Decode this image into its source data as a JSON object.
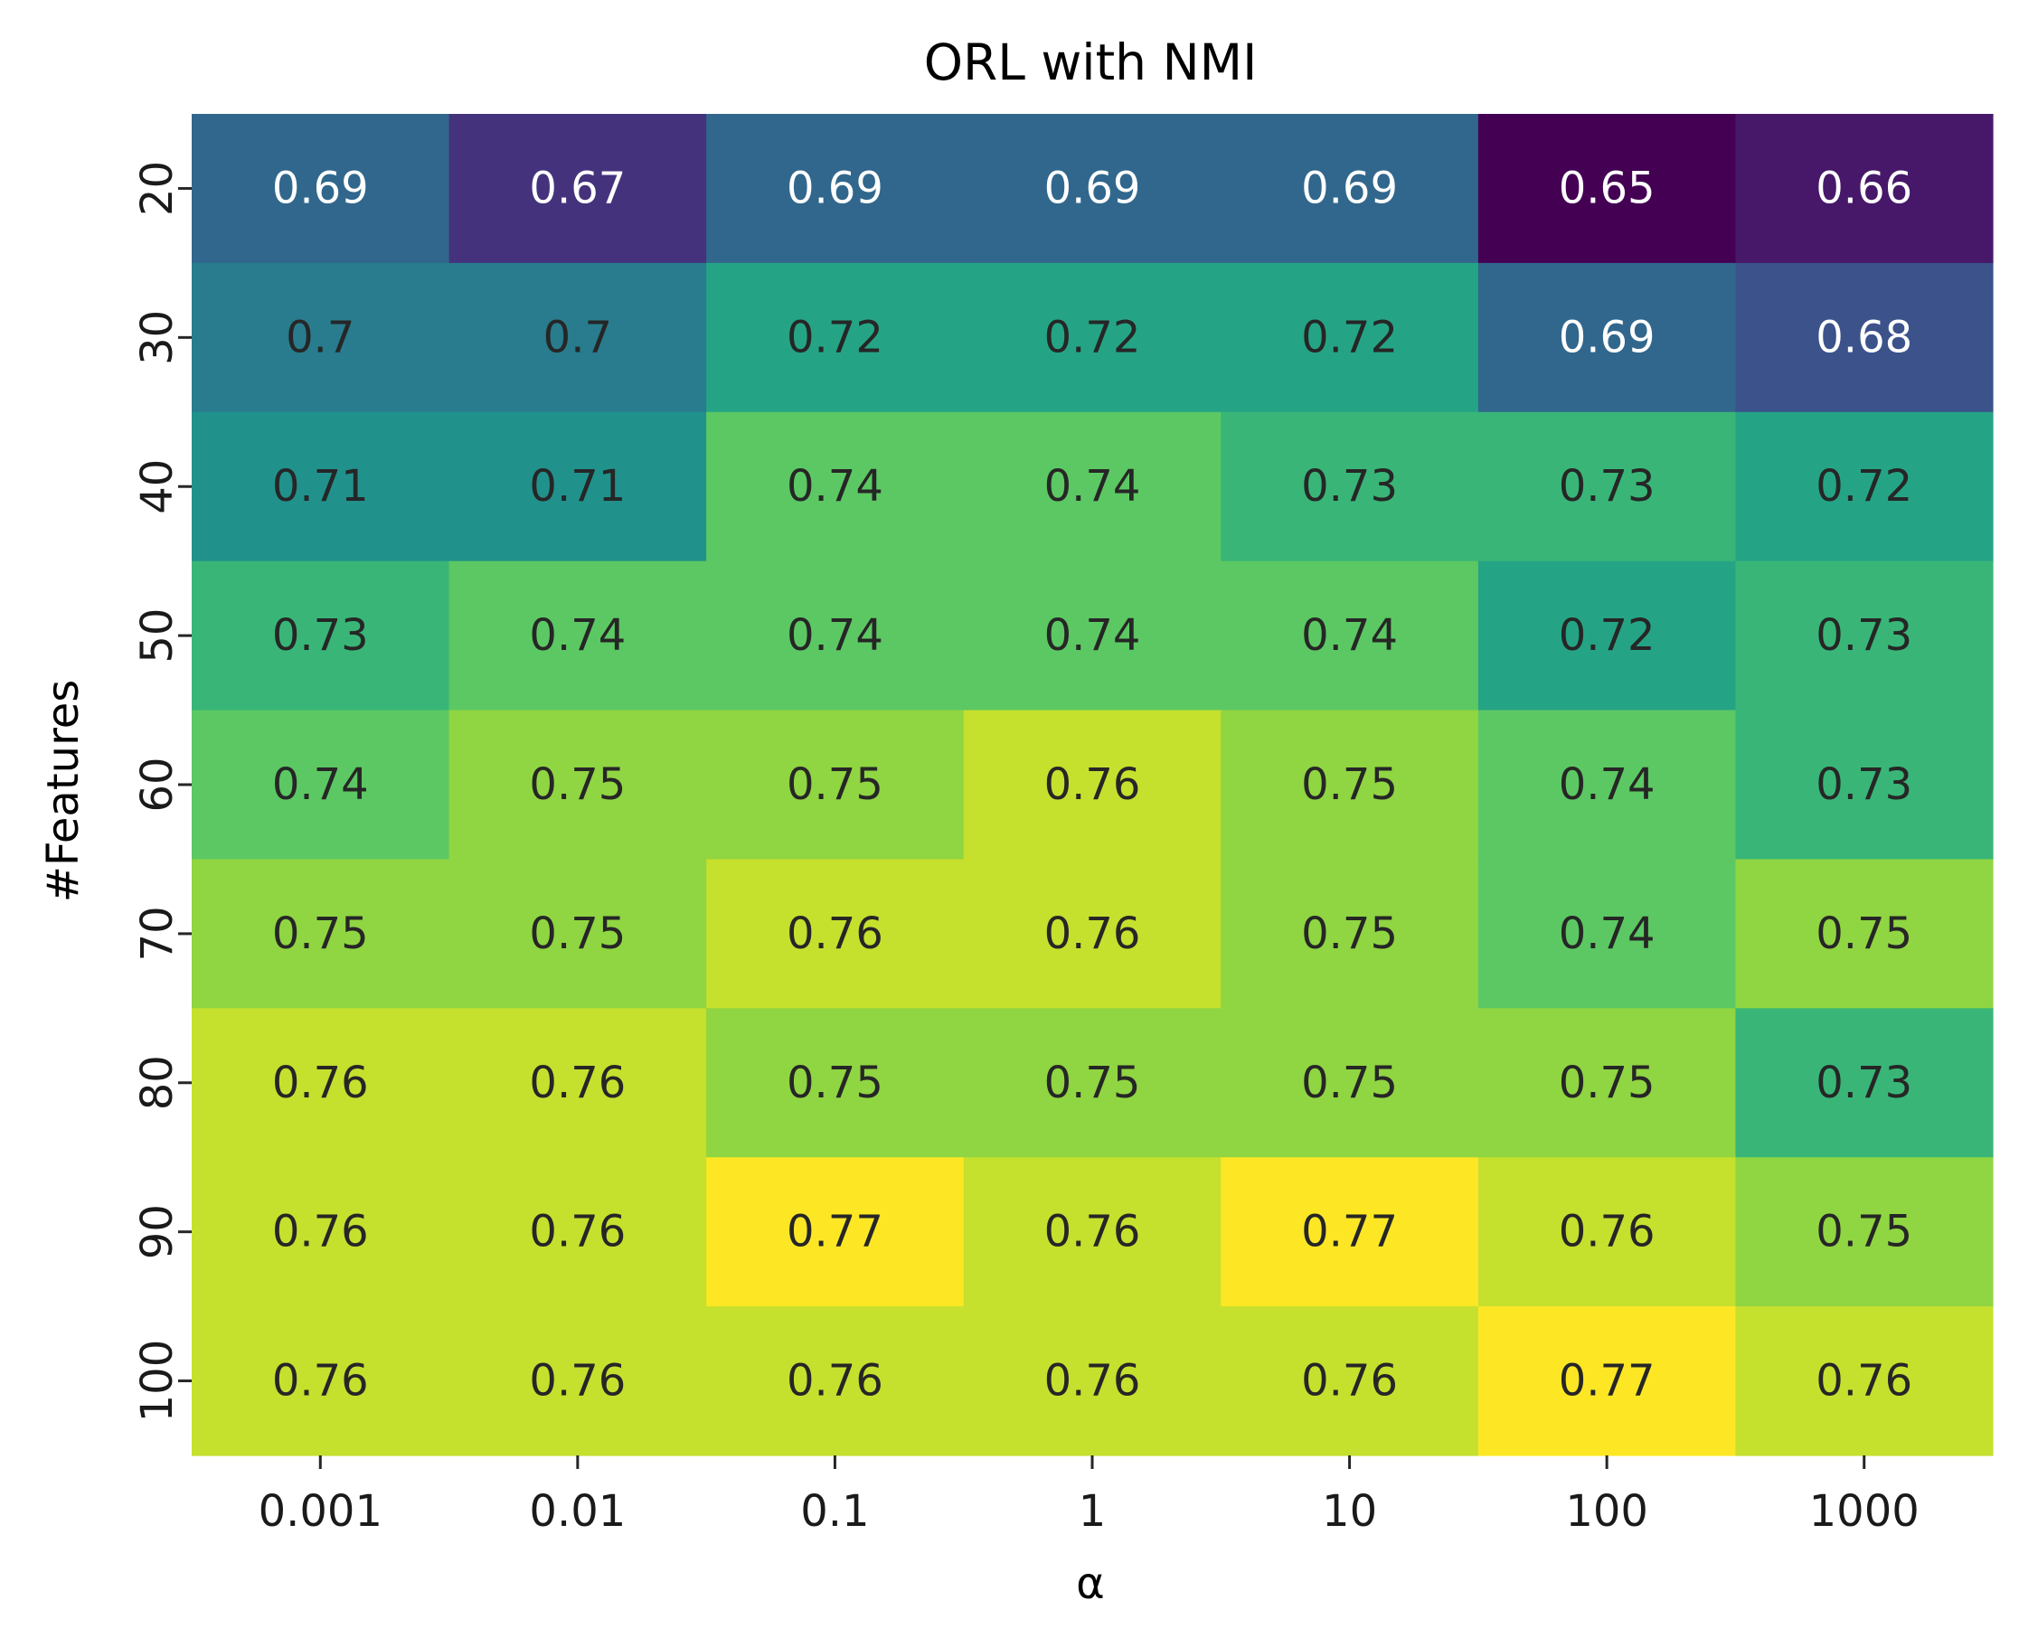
{
  "chart_data": {
    "type": "heatmap",
    "title": "ORL with NMI",
    "xlabel": "α",
    "ylabel": "#Features",
    "x_categories": [
      "0.001",
      "0.01",
      "0.1",
      "1",
      "10",
      "100",
      "1000"
    ],
    "y_categories": [
      "20",
      "30",
      "40",
      "50",
      "60",
      "70",
      "80",
      "90",
      "100"
    ],
    "values": [
      [
        0.69,
        0.67,
        0.69,
        0.69,
        0.69,
        0.65,
        0.66
      ],
      [
        0.7,
        0.7,
        0.72,
        0.72,
        0.72,
        0.69,
        0.68
      ],
      [
        0.71,
        0.71,
        0.74,
        0.74,
        0.73,
        0.73,
        0.72
      ],
      [
        0.73,
        0.74,
        0.74,
        0.74,
        0.74,
        0.72,
        0.73
      ],
      [
        0.74,
        0.75,
        0.75,
        0.76,
        0.75,
        0.74,
        0.73
      ],
      [
        0.75,
        0.75,
        0.76,
        0.76,
        0.75,
        0.74,
        0.75
      ],
      [
        0.76,
        0.76,
        0.75,
        0.75,
        0.75,
        0.75,
        0.73
      ],
      [
        0.76,
        0.76,
        0.77,
        0.76,
        0.77,
        0.76,
        0.75
      ],
      [
        0.76,
        0.76,
        0.76,
        0.76,
        0.76,
        0.77,
        0.76
      ]
    ],
    "value_labels": [
      [
        "0.69",
        "0.67",
        "0.69",
        "0.69",
        "0.69",
        "0.65",
        "0.66"
      ],
      [
        "0.7",
        "0.7",
        "0.72",
        "0.72",
        "0.72",
        "0.69",
        "0.68"
      ],
      [
        "0.71",
        "0.71",
        "0.74",
        "0.74",
        "0.73",
        "0.73",
        "0.72"
      ],
      [
        "0.73",
        "0.74",
        "0.74",
        "0.74",
        "0.74",
        "0.72",
        "0.73"
      ],
      [
        "0.74",
        "0.75",
        "0.75",
        "0.76",
        "0.75",
        "0.74",
        "0.73"
      ],
      [
        "0.75",
        "0.75",
        "0.76",
        "0.76",
        "0.75",
        "0.74",
        "0.75"
      ],
      [
        "0.76",
        "0.76",
        "0.75",
        "0.75",
        "0.75",
        "0.75",
        "0.73"
      ],
      [
        "0.76",
        "0.76",
        "0.77",
        "0.76",
        "0.77",
        "0.76",
        "0.75"
      ],
      [
        "0.76",
        "0.76",
        "0.76",
        "0.76",
        "0.76",
        "0.77",
        "0.76"
      ]
    ],
    "colormap": "viridis",
    "color_range": [
      0.65,
      0.77
    ],
    "colorbar": false,
    "text_colors": {
      "light": "#ffffff",
      "dark": "#262626"
    }
  }
}
